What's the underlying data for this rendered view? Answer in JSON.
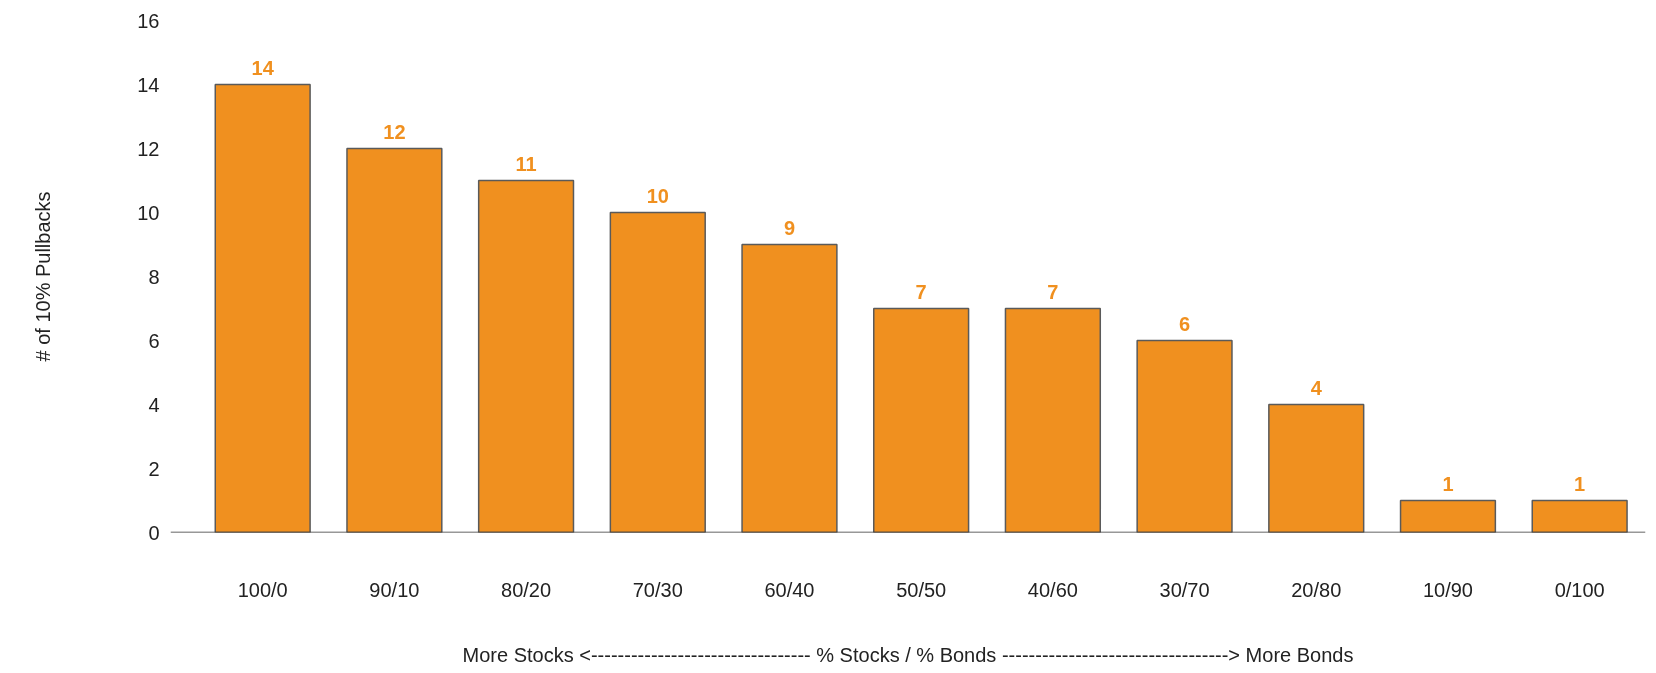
{
  "chart_data": {
    "type": "bar",
    "xlabel": "More Stocks <--------------------------------- % Stocks / % Bonds ----------------------------------> More Bonds",
    "ylabel": "# of 10% Pullbacks",
    "categories": [
      "100/0",
      "90/10",
      "80/20",
      "70/30",
      "60/40",
      "50/50",
      "40/60",
      "30/70",
      "20/80",
      "10/90",
      "0/100"
    ],
    "values": [
      14,
      12,
      11,
      10,
      9,
      7,
      7,
      6,
      4,
      1,
      1
    ],
    "color": "#f0901f",
    "ylim": [
      0,
      16
    ],
    "yticks": [
      0,
      2,
      4,
      6,
      8,
      10,
      12,
      14,
      16
    ],
    "grid": false,
    "data_labels": true
  }
}
